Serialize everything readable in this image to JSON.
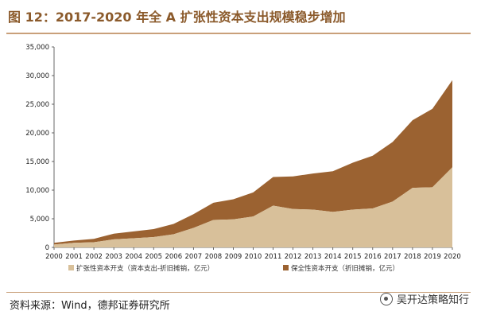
{
  "figure_title": "图 12：2017-2020 年全 A 扩张性资本支出规模稳步增加",
  "source_text": "资料来源：Wind，德邦证券研究所",
  "watermark_text": "吴开达策略知行",
  "colors": {
    "title": "#8B5A2B",
    "expansion": "#D8C09A",
    "maintenance": "#9B6231",
    "rule": "#C9A07A"
  },
  "chart_data": {
    "type": "area",
    "stacked": true,
    "x": [
      "2000",
      "2001",
      "2002",
      "2003",
      "2004",
      "2005",
      "2006",
      "2007",
      "2008",
      "2009",
      "2010",
      "2011",
      "2012",
      "2013",
      "2014",
      "2015",
      "2016",
      "2017",
      "2018",
      "2019",
      "2020"
    ],
    "series": [
      {
        "name": "扩张性资本开支（资本支出-折旧摊销，亿元）",
        "values": [
          500,
          800,
          900,
          1400,
          1600,
          1800,
          2300,
          3400,
          4800,
          4900,
          5400,
          7300,
          6700,
          6600,
          6200,
          6600,
          6800,
          8000,
          10400,
          10500,
          14000
        ]
      },
      {
        "name": "保全性资本开支（折旧摊销，亿元）",
        "values": [
          300,
          400,
          600,
          1000,
          1200,
          1400,
          1800,
          2400,
          3000,
          3500,
          4200,
          5000,
          5700,
          6300,
          7100,
          8200,
          9200,
          10400,
          11800,
          13700,
          15200
        ]
      }
    ],
    "ylim": [
      0,
      35000
    ],
    "yticks": [
      "0",
      "5,000",
      "10,000",
      "15,000",
      "20,000",
      "25,000",
      "30,000",
      "35,000"
    ],
    "ytick_values": [
      0,
      5000,
      10000,
      15000,
      20000,
      25000,
      30000,
      35000
    ],
    "legend_position": "bottom"
  }
}
